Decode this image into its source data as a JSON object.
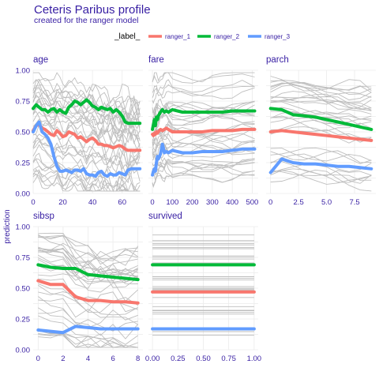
{
  "chart_data": {
    "type": "line",
    "title": "Ceteris Paribus profile",
    "subtitle": "created for the ranger model",
    "ylabel": "prediction",
    "legend": {
      "title": "_label_",
      "placement": "top",
      "entries": [
        {
          "name": "ranger_1",
          "color": "#f8766d"
        },
        {
          "name": "ranger_2",
          "color": "#00ba38"
        },
        {
          "name": "ranger_3",
          "color": "#619cff"
        }
      ]
    },
    "background_color": "#bebebe",
    "ylim": [
      0,
      1
    ],
    "yticks": [
      "0.00",
      "0.25",
      "0.50",
      "0.75",
      "1.00"
    ],
    "panels": [
      {
        "name": "age",
        "xlim": [
          0,
          74
        ],
        "xticks": [
          0,
          20,
          40,
          60
        ],
        "xtick_labels": [
          "0",
          "20",
          "40",
          "60"
        ],
        "series": [
          {
            "name": "ranger_1",
            "x": [
              0,
              2,
              4,
              6,
              8,
              10,
              12,
              14,
              16,
              18,
              20,
              22,
              24,
              26,
              28,
              30,
              32,
              34,
              36,
              38,
              40,
              42,
              44,
              46,
              48,
              50,
              52,
              54,
              56,
              58,
              60,
              62,
              64,
              66,
              68,
              70,
              72
            ],
            "y": [
              0.51,
              0.55,
              0.56,
              0.53,
              0.52,
              0.5,
              0.48,
              0.47,
              0.51,
              0.49,
              0.46,
              0.47,
              0.5,
              0.49,
              0.48,
              0.45,
              0.46,
              0.44,
              0.42,
              0.44,
              0.45,
              0.43,
              0.4,
              0.4,
              0.39,
              0.39,
              0.38,
              0.37,
              0.38,
              0.39,
              0.38,
              0.36,
              0.35,
              0.35,
              0.35,
              0.35,
              0.35
            ]
          },
          {
            "name": "ranger_2",
            "x": [
              0,
              2,
              4,
              6,
              8,
              10,
              12,
              14,
              16,
              18,
              20,
              22,
              24,
              26,
              28,
              30,
              32,
              34,
              36,
              38,
              40,
              42,
              44,
              46,
              48,
              50,
              52,
              54,
              56,
              58,
              60,
              62,
              64,
              66,
              68,
              70,
              72
            ],
            "y": [
              0.69,
              0.72,
              0.7,
              0.68,
              0.68,
              0.66,
              0.68,
              0.69,
              0.66,
              0.68,
              0.66,
              0.65,
              0.7,
              0.72,
              0.75,
              0.74,
              0.72,
              0.74,
              0.76,
              0.74,
              0.71,
              0.7,
              0.68,
              0.7,
              0.69,
              0.68,
              0.69,
              0.66,
              0.68,
              0.66,
              0.63,
              0.58,
              0.57,
              0.57,
              0.57,
              0.57,
              0.57
            ]
          },
          {
            "name": "ranger_3",
            "x": [
              0,
              2,
              4,
              6,
              8,
              10,
              12,
              14,
              16,
              18,
              20,
              22,
              24,
              26,
              28,
              30,
              32,
              34,
              36,
              38,
              40,
              42,
              44,
              46,
              48,
              50,
              52,
              54,
              56,
              58,
              60,
              62,
              64,
              66,
              68,
              70,
              72
            ],
            "y": [
              0.5,
              0.55,
              0.58,
              0.5,
              0.48,
              0.45,
              0.4,
              0.3,
              0.22,
              0.18,
              0.18,
              0.19,
              0.18,
              0.17,
              0.19,
              0.19,
              0.18,
              0.2,
              0.16,
              0.15,
              0.15,
              0.14,
              0.17,
              0.18,
              0.15,
              0.14,
              0.16,
              0.15,
              0.15,
              0.17,
              0.16,
              0.15,
              0.19,
              0.2,
              0.2,
              0.2,
              0.2
            ]
          }
        ]
      },
      {
        "name": "fare",
        "xlim": [
          -20,
          530
        ],
        "xticks": [
          0,
          100,
          200,
          300,
          400,
          500
        ],
        "xtick_labels": [
          "0",
          "100",
          "200",
          "300",
          "400",
          "500"
        ],
        "series": [
          {
            "name": "ranger_1",
            "x": [
              0,
              5,
              10,
              15,
              20,
              25,
              30,
              40,
              50,
              60,
              70,
              80,
              100,
              150,
              200,
              250,
              300,
              350,
              400,
              450,
              512
            ],
            "y": [
              0.48,
              0.47,
              0.49,
              0.48,
              0.5,
              0.49,
              0.5,
              0.52,
              0.51,
              0.52,
              0.53,
              0.52,
              0.5,
              0.5,
              0.5,
              0.5,
              0.51,
              0.51,
              0.51,
              0.52,
              0.52
            ]
          },
          {
            "name": "ranger_2",
            "x": [
              0,
              5,
              10,
              15,
              20,
              25,
              30,
              40,
              50,
              60,
              70,
              80,
              100,
              150,
              200,
              250,
              300,
              350,
              400,
              450,
              512
            ],
            "y": [
              0.52,
              0.56,
              0.6,
              0.55,
              0.62,
              0.6,
              0.63,
              0.66,
              0.68,
              0.66,
              0.67,
              0.66,
              0.68,
              0.66,
              0.66,
              0.66,
              0.66,
              0.66,
              0.67,
              0.67,
              0.67
            ]
          },
          {
            "name": "ranger_3",
            "x": [
              0,
              5,
              10,
              15,
              20,
              25,
              30,
              40,
              50,
              60,
              70,
              80,
              100,
              150,
              200,
              250,
              300,
              350,
              400,
              450,
              512
            ],
            "y": [
              0.15,
              0.18,
              0.2,
              0.18,
              0.25,
              0.3,
              0.28,
              0.32,
              0.4,
              0.33,
              0.34,
              0.33,
              0.35,
              0.33,
              0.33,
              0.34,
              0.34,
              0.34,
              0.35,
              0.36,
              0.36
            ]
          }
        ]
      },
      {
        "name": "parch",
        "xlim": [
          -0.4,
          9.4
        ],
        "xticks": [
          0,
          2.5,
          5,
          7.5
        ],
        "xtick_labels": [
          "0",
          "2.5",
          "5.0",
          "7.5"
        ],
        "series": [
          {
            "name": "ranger_1",
            "x": [
              0,
              1,
              2,
              3,
              4,
              5,
              6,
              7,
              8,
              9
            ],
            "y": [
              0.5,
              0.51,
              0.5,
              0.49,
              0.48,
              0.47,
              0.46,
              0.45,
              0.44,
              0.43
            ]
          },
          {
            "name": "ranger_2",
            "x": [
              0,
              1,
              2,
              3,
              4,
              5,
              6,
              7,
              8,
              9
            ],
            "y": [
              0.69,
              0.68,
              0.64,
              0.63,
              0.62,
              0.6,
              0.58,
              0.56,
              0.54,
              0.52
            ]
          },
          {
            "name": "ranger_3",
            "x": [
              0,
              1,
              2,
              3,
              4,
              5,
              6,
              7,
              8,
              9
            ],
            "y": [
              0.17,
              0.28,
              0.25,
              0.24,
              0.24,
              0.23,
              0.22,
              0.22,
              0.21,
              0.2
            ]
          }
        ]
      },
      {
        "name": "sibsp",
        "xlim": [
          -0.4,
          8.4
        ],
        "xticks": [
          0,
          2,
          4,
          6,
          8
        ],
        "xtick_labels": [
          "0",
          "2",
          "4",
          "6",
          "8"
        ],
        "series": [
          {
            "name": "ranger_1",
            "x": [
              0,
              1,
              2,
              3,
              4,
              5,
              6,
              7,
              8
            ],
            "y": [
              0.56,
              0.53,
              0.53,
              0.43,
              0.4,
              0.4,
              0.39,
              0.39,
              0.38
            ]
          },
          {
            "name": "ranger_2",
            "x": [
              0,
              1,
              2,
              3,
              4,
              5,
              6,
              7,
              8
            ],
            "y": [
              0.69,
              0.67,
              0.66,
              0.66,
              0.61,
              0.6,
              0.59,
              0.58,
              0.57
            ]
          },
          {
            "name": "ranger_3",
            "x": [
              0,
              1,
              2,
              3,
              4,
              5,
              6,
              7,
              8
            ],
            "y": [
              0.16,
              0.15,
              0.14,
              0.19,
              0.18,
              0.17,
              0.17,
              0.17,
              0.17
            ]
          }
        ]
      },
      {
        "name": "survived",
        "xlim": [
          -0.04,
          1.04
        ],
        "xticks": [
          0,
          0.25,
          0.5,
          0.75,
          1
        ],
        "xtick_labels": [
          "0.00",
          "0.25",
          "0.50",
          "0.75",
          "1.00"
        ],
        "series": [
          {
            "name": "ranger_1",
            "x": [
              0,
              1
            ],
            "y": [
              0.47,
              0.47
            ]
          },
          {
            "name": "ranger_2",
            "x": [
              0,
              1
            ],
            "y": [
              0.69,
              0.69
            ]
          },
          {
            "name": "ranger_3",
            "x": [
              0,
              1
            ],
            "y": [
              0.17,
              0.17
            ]
          }
        ]
      }
    ]
  }
}
